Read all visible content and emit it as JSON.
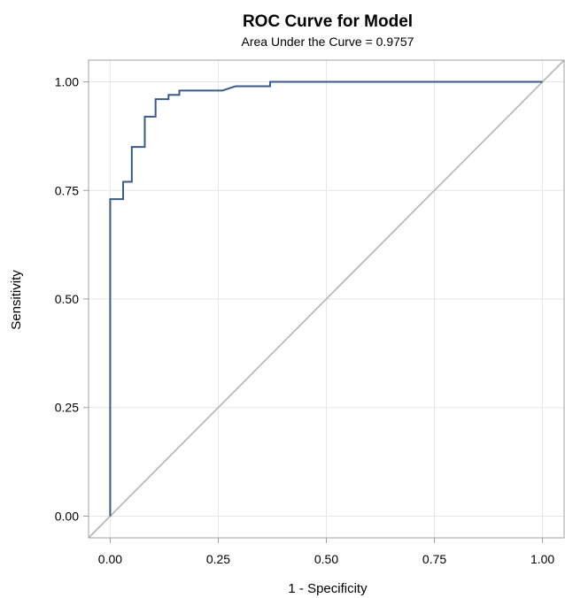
{
  "chart_data": {
    "type": "line",
    "title": "ROC Curve for Model",
    "subtitle": "Area Under the Curve = 0.9757",
    "xlabel": "1 - Specificity",
    "ylabel": "Sensitivity",
    "xlim": [
      -0.05,
      1.05
    ],
    "ylim": [
      -0.05,
      1.05
    ],
    "grid": true,
    "x_ticks": [
      "0.00",
      "0.25",
      "0.50",
      "0.75",
      "1.00"
    ],
    "y_ticks": [
      "0.00",
      "0.25",
      "0.50",
      "0.75",
      "1.00"
    ],
    "series": [
      {
        "color": "#3a5a8a",
        "step": true,
        "x": [
          0.0,
          0.0,
          0.03,
          0.03,
          0.05,
          0.05,
          0.08,
          0.08,
          0.105,
          0.105,
          0.135,
          0.135,
          0.16,
          0.16,
          0.26,
          0.29,
          0.29,
          0.37,
          0.37,
          1.0
        ],
        "y": [
          0.0,
          0.73,
          0.73,
          0.77,
          0.77,
          0.85,
          0.85,
          0.92,
          0.92,
          0.96,
          0.96,
          0.97,
          0.97,
          0.98,
          0.98,
          0.99,
          0.99,
          0.99,
          1.0,
          1.0
        ]
      },
      {
        "color": "#b4b4b4",
        "reference": true,
        "x": [
          -0.05,
          1.05
        ],
        "y": [
          -0.05,
          1.05
        ]
      }
    ]
  }
}
